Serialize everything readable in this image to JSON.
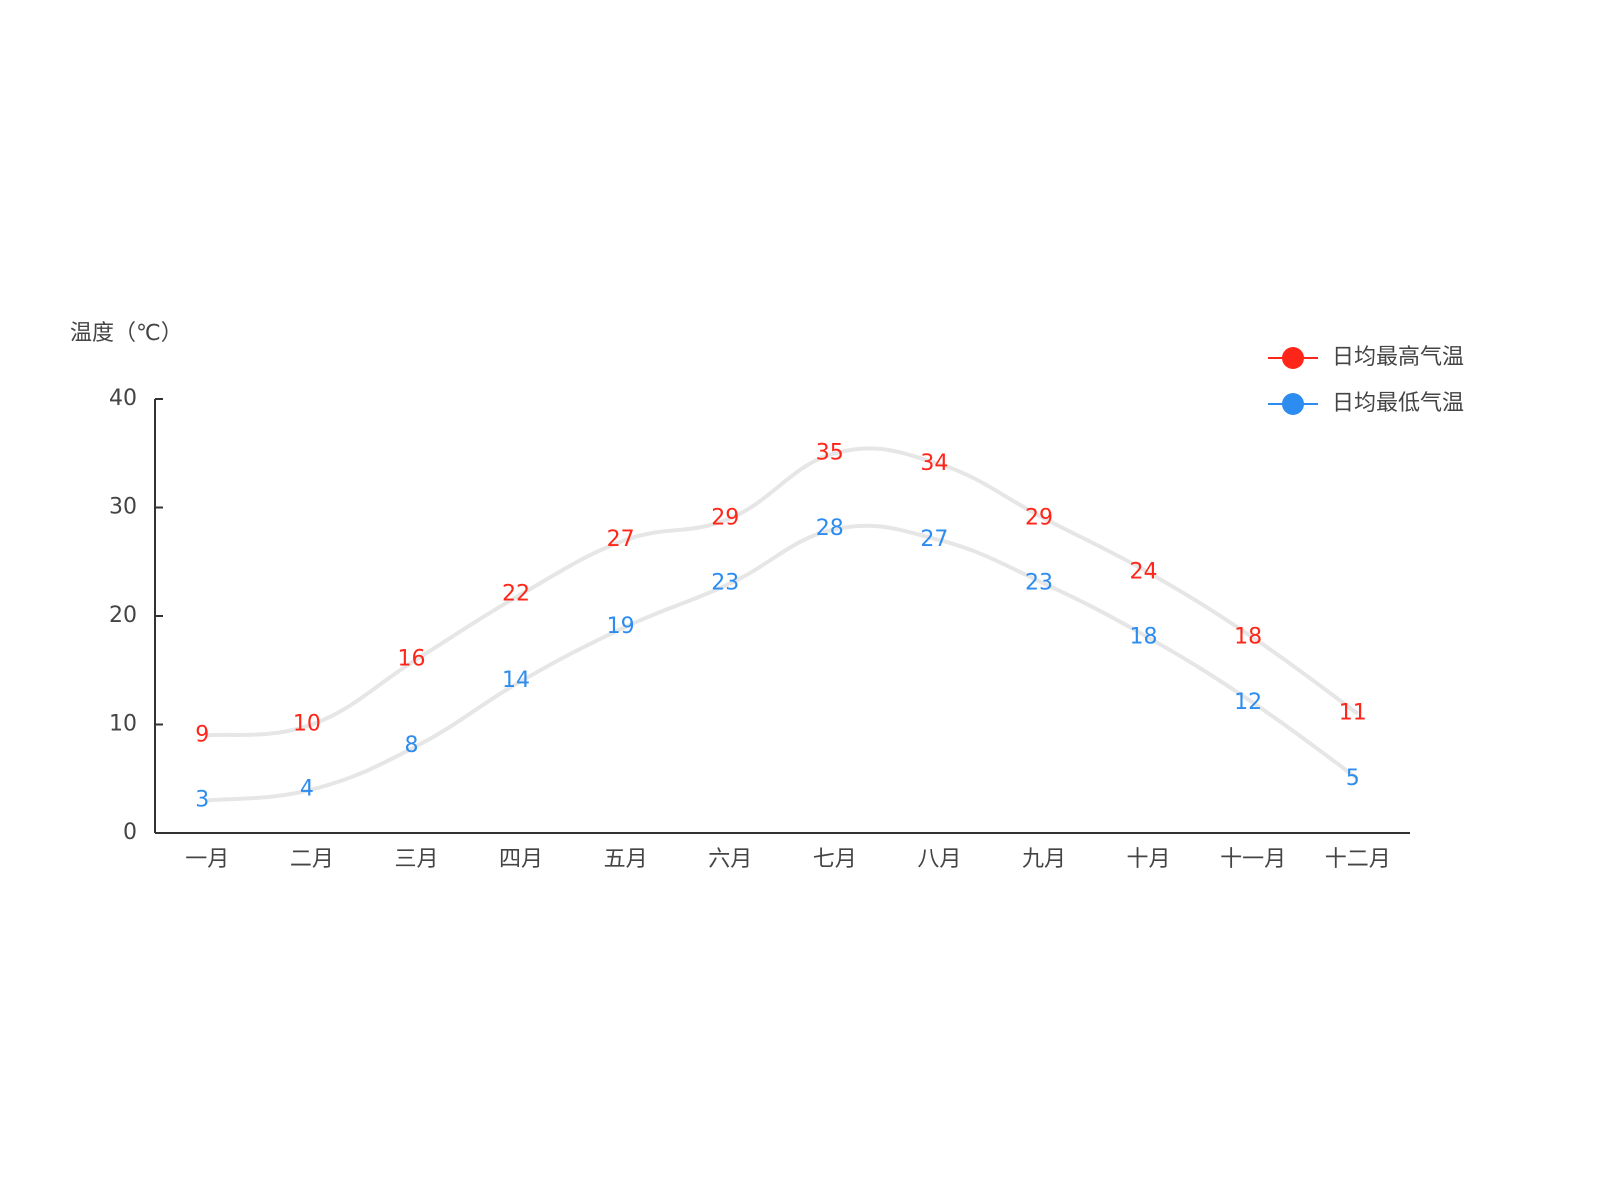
{
  "chart_data": {
    "type": "line",
    "smooth": true,
    "y_label": "温度（℃）",
    "categories": [
      "一月",
      "二月",
      "三月",
      "四月",
      "五月",
      "六月",
      "七月",
      "八月",
      "九月",
      "十月",
      "十一月",
      "十二月"
    ],
    "series": [
      {
        "name": "日均最高气温",
        "color": "#ff2619",
        "values": [
          9,
          10,
          16,
          22,
          27,
          29,
          35,
          34,
          29,
          24,
          18,
          11
        ]
      },
      {
        "name": "日均最低气温",
        "color": "#2d8cf0",
        "values": [
          3,
          4,
          8,
          14,
          19,
          23,
          28,
          27,
          23,
          18,
          12,
          5
        ]
      }
    ],
    "line_color": "#e6e6e6",
    "ylim": [
      0,
      40
    ],
    "yticks": [
      0,
      10,
      20,
      30,
      40
    ],
    "legend": "top-right"
  }
}
